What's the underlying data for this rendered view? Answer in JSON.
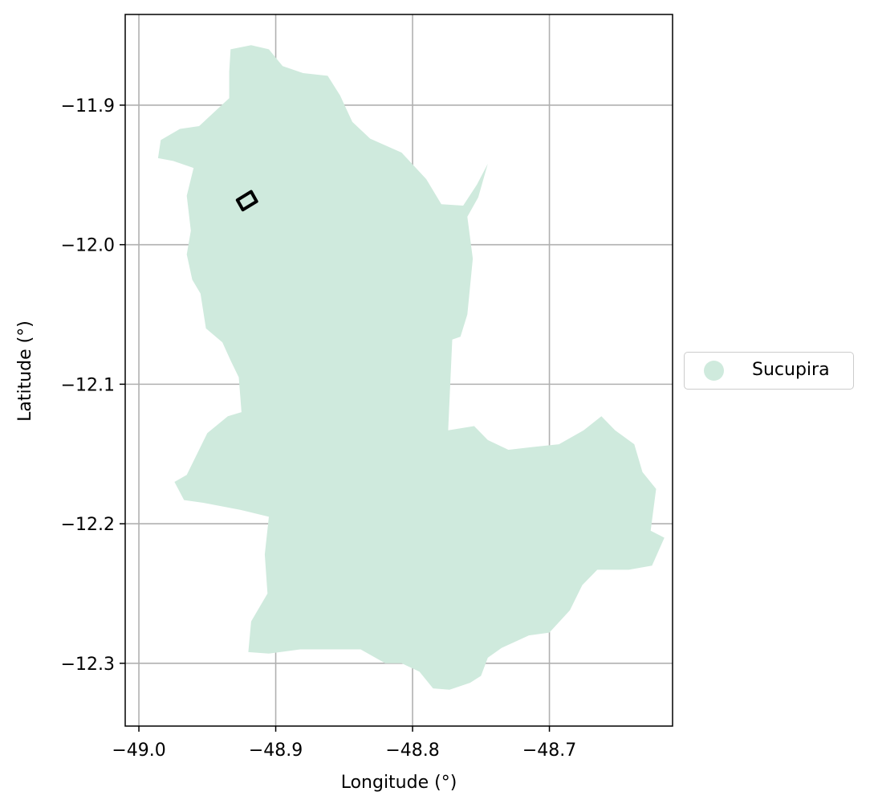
{
  "map": {
    "xlabel": "Longitude (°)",
    "ylabel": "Latitude (°)",
    "x_ticks": [
      {
        "value": -49.0,
        "label": "−49.0"
      },
      {
        "value": -48.9,
        "label": "−48.9"
      },
      {
        "value": -48.8,
        "label": "−48.8"
      },
      {
        "value": -48.7,
        "label": "−48.7"
      }
    ],
    "y_ticks": [
      {
        "value": -11.9,
        "label": "−11.9"
      },
      {
        "value": -12.0,
        "label": "−12.0"
      },
      {
        "value": -12.1,
        "label": "−12.1"
      },
      {
        "value": -12.2,
        "label": "−12.2"
      },
      {
        "value": -12.3,
        "label": "−12.3"
      }
    ],
    "xlim": [
      -49.01,
      -48.61
    ],
    "ylim": [
      -12.345,
      -11.835
    ],
    "grid": true,
    "legend": {
      "placement": "center-right outside",
      "entries": [
        {
          "label": "Sucupira",
          "color": "#cfeadd"
        }
      ]
    },
    "region": {
      "name": "Sucupira",
      "fill_color": "#cfeadd",
      "outline_lonlat": [
        [
          -48.933,
          -11.86
        ],
        [
          -48.918,
          -11.857
        ],
        [
          -48.905,
          -11.86
        ],
        [
          -48.895,
          -11.872
        ],
        [
          -48.88,
          -11.877
        ],
        [
          -48.862,
          -11.879
        ],
        [
          -48.853,
          -11.893
        ],
        [
          -48.844,
          -11.912
        ],
        [
          -48.831,
          -11.924
        ],
        [
          -48.808,
          -11.934
        ],
        [
          -48.79,
          -11.953
        ],
        [
          -48.779,
          -11.971
        ],
        [
          -48.763,
          -11.972
        ],
        [
          -48.753,
          -11.957
        ],
        [
          -48.745,
          -11.942
        ],
        [
          -48.752,
          -11.966
        ],
        [
          -48.76,
          -11.98
        ],
        [
          -48.756,
          -12.01
        ],
        [
          -48.76,
          -12.05
        ],
        [
          -48.765,
          -12.066
        ],
        [
          -48.771,
          -12.068
        ],
        [
          -48.774,
          -12.133
        ],
        [
          -48.755,
          -12.13
        ],
        [
          -48.745,
          -12.14
        ],
        [
          -48.73,
          -12.147
        ],
        [
          -48.712,
          -12.145
        ],
        [
          -48.693,
          -12.143
        ],
        [
          -48.675,
          -12.133
        ],
        [
          -48.662,
          -12.123
        ],
        [
          -48.652,
          -12.133
        ],
        [
          -48.638,
          -12.143
        ],
        [
          -48.632,
          -12.163
        ],
        [
          -48.622,
          -12.175
        ],
        [
          -48.626,
          -12.205
        ],
        [
          -48.616,
          -12.21
        ],
        [
          -48.625,
          -12.23
        ],
        [
          -48.642,
          -12.233
        ],
        [
          -48.665,
          -12.233
        ],
        [
          -48.676,
          -12.244
        ],
        [
          -48.685,
          -12.262
        ],
        [
          -48.7,
          -12.278
        ],
        [
          -48.715,
          -12.28
        ],
        [
          -48.735,
          -12.289
        ],
        [
          -48.745,
          -12.296
        ],
        [
          -48.75,
          -12.309
        ],
        [
          -48.758,
          -12.314
        ],
        [
          -48.773,
          -12.319
        ],
        [
          -48.785,
          -12.318
        ],
        [
          -48.795,
          -12.306
        ],
        [
          -48.808,
          -12.3
        ],
        [
          -48.82,
          -12.3
        ],
        [
          -48.838,
          -12.29
        ],
        [
          -48.86,
          -12.29
        ],
        [
          -48.882,
          -12.29
        ],
        [
          -48.905,
          -12.293
        ],
        [
          -48.92,
          -12.292
        ],
        [
          -48.918,
          -12.27
        ],
        [
          -48.906,
          -12.25
        ],
        [
          -48.908,
          -12.222
        ],
        [
          -48.905,
          -12.195
        ],
        [
          -48.926,
          -12.19
        ],
        [
          -48.953,
          -12.185
        ],
        [
          -48.967,
          -12.183
        ],
        [
          -48.974,
          -12.17
        ],
        [
          -48.965,
          -12.165
        ],
        [
          -48.95,
          -12.135
        ],
        [
          -48.935,
          -12.123
        ],
        [
          -48.925,
          -12.12
        ],
        [
          -48.927,
          -12.095
        ],
        [
          -48.933,
          -12.083
        ],
        [
          -48.939,
          -12.07
        ],
        [
          -48.951,
          -12.06
        ],
        [
          -48.955,
          -12.035
        ],
        [
          -48.961,
          -12.025
        ],
        [
          -48.965,
          -12.007
        ],
        [
          -48.962,
          -11.99
        ],
        [
          -48.965,
          -11.965
        ],
        [
          -48.96,
          -11.945
        ],
        [
          -48.975,
          -11.94
        ],
        [
          -48.986,
          -11.938
        ],
        [
          -48.984,
          -11.925
        ],
        [
          -48.97,
          -11.917
        ],
        [
          -48.956,
          -11.915
        ],
        [
          -48.945,
          -11.905
        ],
        [
          -48.934,
          -11.895
        ],
        [
          -48.934,
          -11.876
        ],
        [
          -48.933,
          -11.86
        ]
      ]
    },
    "marker_box": {
      "outline_lonlat": [
        [
          -48.928,
          -11.968
        ],
        [
          -48.918,
          -11.962
        ],
        [
          -48.914,
          -11.969
        ],
        [
          -48.924,
          -11.975
        ]
      ]
    }
  }
}
